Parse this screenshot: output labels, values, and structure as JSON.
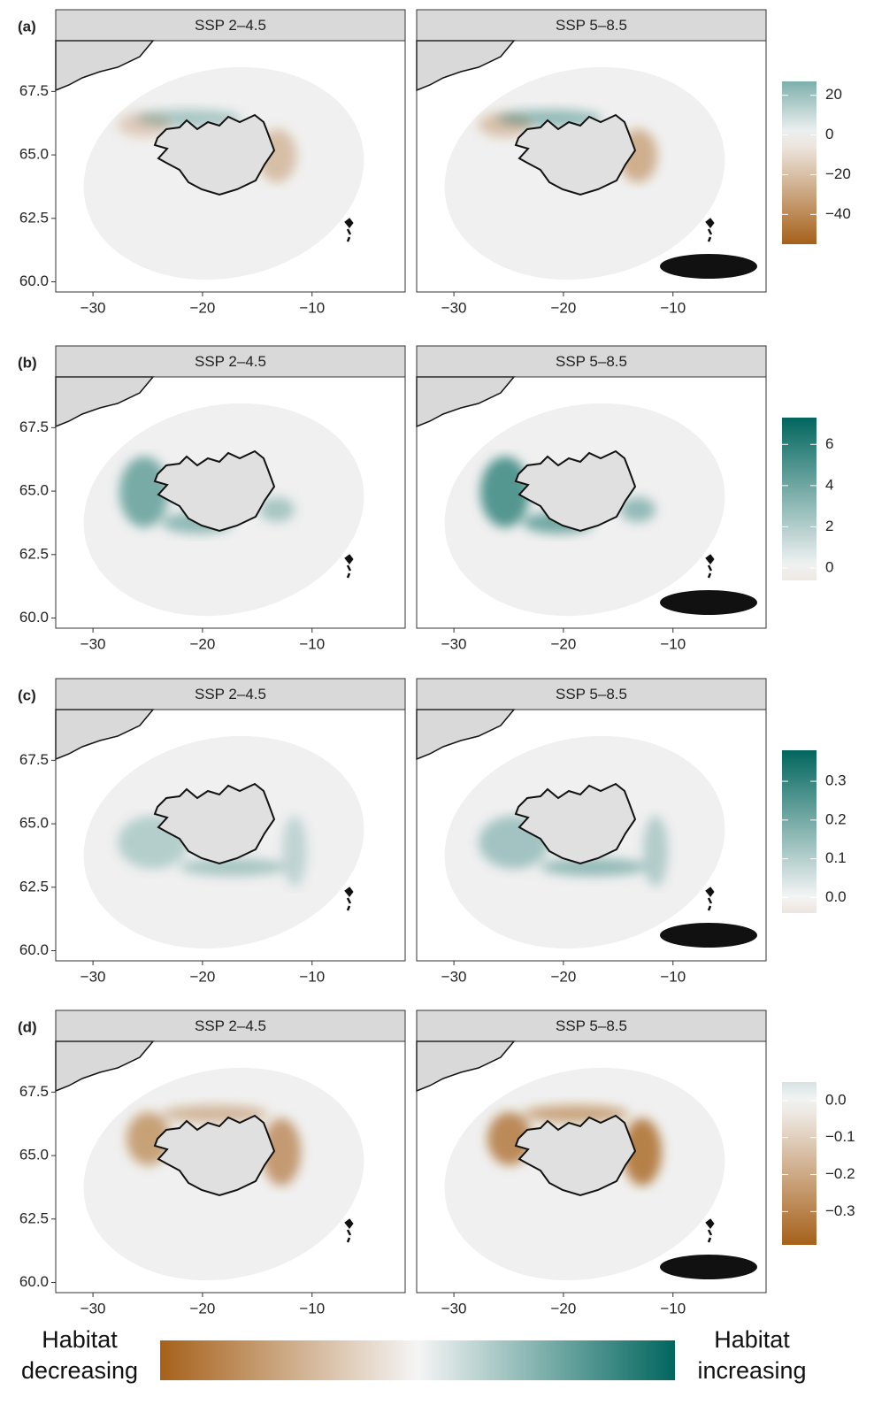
{
  "axes": {
    "xlim": [
      -33.4,
      -1.5
    ],
    "ylim": [
      59.6,
      69.5
    ],
    "xticks": [
      {
        "value": -30,
        "label": "−30"
      },
      {
        "value": -20,
        "label": "−20"
      },
      {
        "value": -10,
        "label": "−10"
      }
    ],
    "yticks": [
      {
        "value": 60,
        "label": "60.0"
      },
      {
        "value": 62.5,
        "label": "62.5"
      },
      {
        "value": 65,
        "label": "65.0"
      },
      {
        "value": 67.5,
        "label": "67.5"
      }
    ]
  },
  "rows": [
    {
      "label": "(a)",
      "facets": [
        "SSP 2–4.5",
        "SSP 5–8.5"
      ],
      "colorbar": {
        "lim": [
          -55,
          27
        ],
        "ticks": [
          20,
          0,
          {
            "value": -20,
            "label": "−20"
          },
          {
            "value": -40,
            "label": "−40"
          }
        ]
      }
    },
    {
      "label": "(b)",
      "facets": [
        "SSP 2–4.5",
        "SSP 5–8.5"
      ],
      "colorbar": {
        "lim": [
          -0.6,
          7.3
        ],
        "ticks": [
          6,
          4,
          2,
          0
        ]
      }
    },
    {
      "label": "(c)",
      "facets": [
        "SSP 2–4.5",
        "SSP 5–8.5"
      ],
      "colorbar": {
        "lim": [
          -0.04,
          0.38
        ],
        "ticks": [
          0.3,
          0.2,
          0.1,
          {
            "value": 0,
            "label": "0.0"
          }
        ]
      }
    },
    {
      "label": "(d)",
      "facets": [
        "SSP 2–4.5",
        "SSP 5–8.5"
      ],
      "colorbar": {
        "lim": [
          -0.39,
          0.05
        ],
        "ticks": [
          {
            "value": 0,
            "label": "0.0"
          },
          {
            "value": -0.1,
            "label": "−0.1"
          },
          {
            "value": -0.2,
            "label": "−0.2"
          },
          {
            "value": -0.3,
            "label": "−0.3"
          }
        ]
      }
    }
  ],
  "legend": {
    "left": [
      "Habitat",
      "decreasing"
    ],
    "right": [
      "Habitat",
      "increasing"
    ]
  }
}
